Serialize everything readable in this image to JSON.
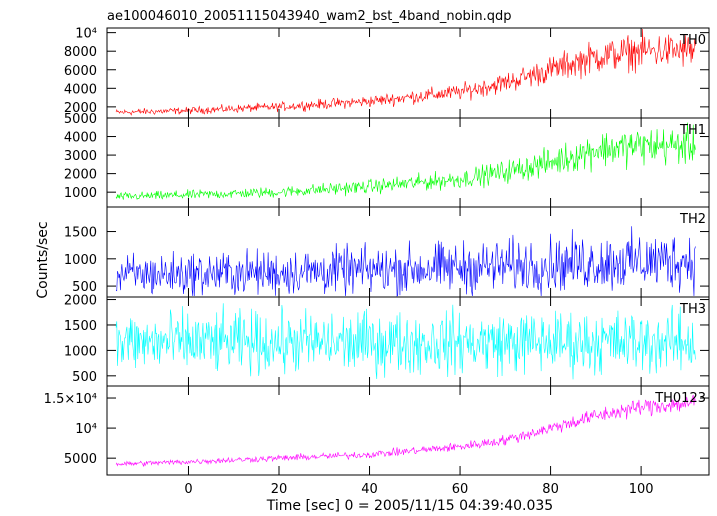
{
  "chart_data": {
    "type": "line",
    "title": "ae100046010_20051115043940_wam2_bst_4band_nobin.qdp",
    "xlabel": "Time [sec] 0 = 2005/11/15 04:39:40.035",
    "ylabel": "Counts/sec",
    "xlim": [
      -18,
      115
    ],
    "x_ticks": [
      0,
      20,
      40,
      60,
      80,
      100
    ],
    "x_start": -16,
    "x_end": 112,
    "grid": false,
    "panels": [
      {
        "name": "TH0",
        "color": "#ff0000",
        "ylim": [
          800,
          10500
        ],
        "y_ticks": [
          {
            "value": 2000,
            "label": "2000"
          },
          {
            "value": 4000,
            "label": "4000"
          },
          {
            "value": 6000,
            "label": "6000"
          },
          {
            "value": 8000,
            "label": "8000"
          },
          {
            "value": 10000,
            "label": "10⁴"
          }
        ],
        "trend": [
          [
            -16,
            1400
          ],
          [
            0,
            1600
          ],
          [
            20,
            2000
          ],
          [
            40,
            2600
          ],
          [
            60,
            3600
          ],
          [
            70,
            4600
          ],
          [
            80,
            6000
          ],
          [
            90,
            7400
          ],
          [
            100,
            8000
          ],
          [
            112,
            8100
          ]
        ],
        "spread": 0.18
      },
      {
        "name": "TH1",
        "color": "#00ff00",
        "ylim": [
          200,
          5000
        ],
        "y_ticks": [
          {
            "value": 1000,
            "label": "1000"
          },
          {
            "value": 2000,
            "label": "2000"
          },
          {
            "value": 3000,
            "label": "3000"
          },
          {
            "value": 4000,
            "label": "4000"
          },
          {
            "value": 5000,
            "label": "5000"
          }
        ],
        "trend": [
          [
            -16,
            750
          ],
          [
            0,
            850
          ],
          [
            20,
            1000
          ],
          [
            40,
            1300
          ],
          [
            60,
            1700
          ],
          [
            70,
            2100
          ],
          [
            80,
            2600
          ],
          [
            90,
            3300
          ],
          [
            100,
            3500
          ],
          [
            112,
            3500
          ]
        ],
        "spread": 0.22
      },
      {
        "name": "TH2",
        "color": "#0000ff",
        "ylim": [
          300,
          1950
        ],
        "y_ticks": [
          {
            "value": 500,
            "label": "500"
          },
          {
            "value": 1000,
            "label": "1000"
          },
          {
            "value": 1500,
            "label": "1500"
          }
        ],
        "trend": [
          [
            -16,
            700
          ],
          [
            0,
            720
          ],
          [
            20,
            750
          ],
          [
            40,
            790
          ],
          [
            60,
            840
          ],
          [
            80,
            900
          ],
          [
            100,
            950
          ],
          [
            112,
            970
          ]
        ],
        "spread": 0.42
      },
      {
        "name": "TH3",
        "color": "#00ffff",
        "ylim": [
          300,
          2050
        ],
        "y_ticks": [
          {
            "value": 500,
            "label": "500"
          },
          {
            "value": 1000,
            "label": "1000"
          },
          {
            "value": 1500,
            "label": "1500"
          },
          {
            "value": 2000,
            "label": "2000"
          }
        ],
        "trend": [
          [
            -16,
            1150
          ],
          [
            40,
            1150
          ],
          [
            80,
            1160
          ],
          [
            112,
            1160
          ]
        ],
        "spread": 0.4
      },
      {
        "name": "TH0123",
        "color": "#ff00ff",
        "ylim": [
          2200,
          17000
        ],
        "y_ticks": [
          {
            "value": 5000,
            "label": "5000"
          },
          {
            "value": 10000,
            "label": "10⁴"
          },
          {
            "value": 15000,
            "label": "1.5×10⁴"
          }
        ],
        "trend": [
          [
            -16,
            4000
          ],
          [
            0,
            4400
          ],
          [
            20,
            5000
          ],
          [
            40,
            5600
          ],
          [
            60,
            6900
          ],
          [
            70,
            8000
          ],
          [
            80,
            10000
          ],
          [
            90,
            12000
          ],
          [
            100,
            13500
          ],
          [
            112,
            14200
          ]
        ],
        "spread": 0.08
      }
    ]
  }
}
